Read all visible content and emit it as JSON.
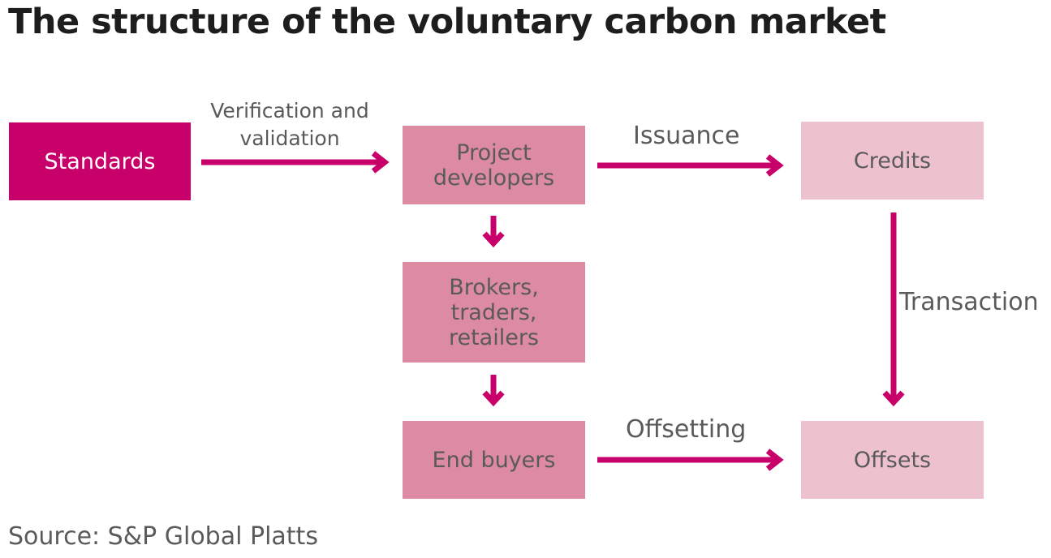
{
  "title": "The structure of the voluntary carbon market",
  "source": "Source: S&P Global Platts",
  "nodes": {
    "standards": "Standards",
    "project_developers": "Project developers",
    "credits": "Credits",
    "brokers": "Brokers, traders, retailers",
    "end_buyers": "End buyers",
    "offsets": "Offsets"
  },
  "edges": {
    "verification": "Verification and validation",
    "issuance": "Issuance",
    "transaction": "Transaction",
    "offsetting": "Offsetting"
  },
  "colors": {
    "accent": "#c8006a",
    "box_dark": "#c8006a",
    "box_mid": "#dd8aa3",
    "box_light": "#eec1cf",
    "text": "#5a5a5a",
    "title": "#1d1d1d"
  }
}
